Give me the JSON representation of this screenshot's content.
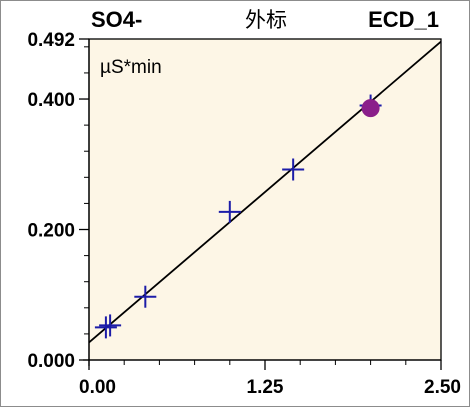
{
  "header": {
    "analyte": "SO4-",
    "method": "外标",
    "detector": "ECD_1"
  },
  "chart_data": {
    "type": "scatter",
    "title": "",
    "unit_label": "µS*min",
    "xlabel": "",
    "ylabel": "",
    "xlim": [
      0.0,
      2.5
    ],
    "ylim": [
      0.0,
      0.492
    ],
    "x_ticks": [
      0.0,
      1.25,
      2.5
    ],
    "x_tick_labels": [
      "0.00",
      "1.25",
      "2.50"
    ],
    "y_ticks": [
      0.0,
      0.2,
      0.4,
      0.492
    ],
    "y_tick_labels": [
      "0.000",
      "0.200",
      "0.400",
      "0.492"
    ],
    "x_minor_step": 0.25,
    "y_minor_step": 0.04,
    "grid": false,
    "plot_background": "#fdf6e6",
    "series": [
      {
        "marker": "plus",
        "color": "#1c1ca8",
        "points": [
          {
            "x": 0.12,
            "y": 0.05
          },
          {
            "x": 0.15,
            "y": 0.053
          },
          {
            "x": 0.4,
            "y": 0.097
          },
          {
            "x": 1.0,
            "y": 0.227
          },
          {
            "x": 1.45,
            "y": 0.292
          },
          {
            "x": 2.0,
            "y": 0.39
          }
        ]
      },
      {
        "marker": "circle",
        "color": "#8a1e8a",
        "points": [
          {
            "x": 2.0,
            "y": 0.386
          }
        ]
      }
    ],
    "fit_line": {
      "color": "#000000",
      "from": {
        "x": 0.0,
        "y": 0.027
      },
      "to": {
        "x": 2.5,
        "y": 0.488
      }
    }
  }
}
